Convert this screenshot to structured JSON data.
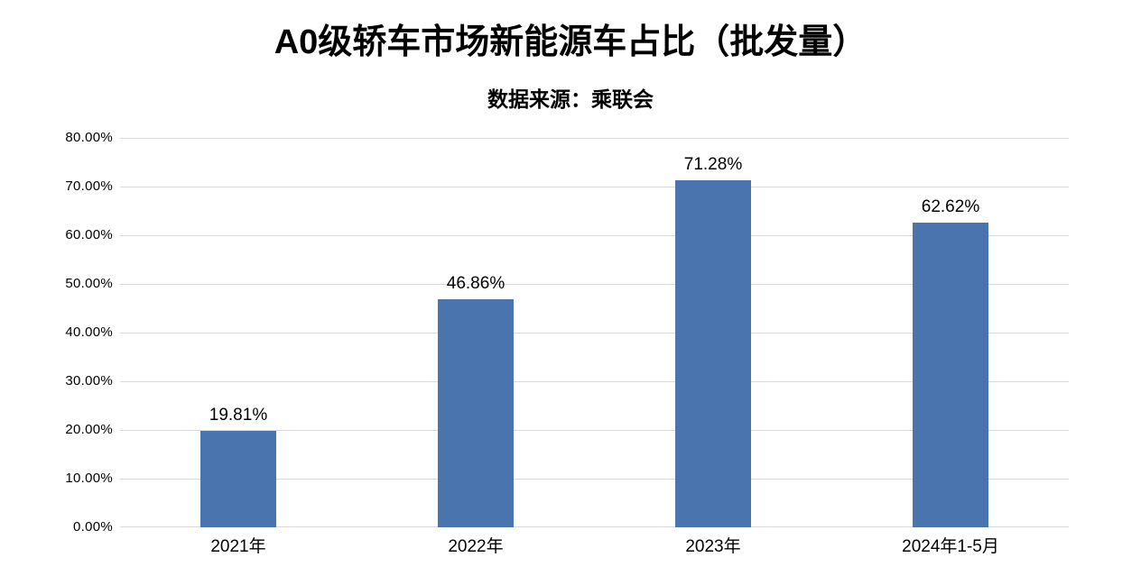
{
  "chart_data": {
    "type": "bar",
    "title": "A0级轿车市场新能源车占比（批发量）",
    "subtitle": "数据来源：乘联会",
    "categories": [
      "2021年",
      "2022年",
      "2023年",
      "2024年1-5月"
    ],
    "values": [
      19.81,
      46.86,
      71.28,
      62.62
    ],
    "data_labels": [
      "19.81%",
      "46.86%",
      "71.28%",
      "62.62%"
    ],
    "y_ticks": [
      "0.00%",
      "10.00%",
      "20.00%",
      "30.00%",
      "40.00%",
      "50.00%",
      "60.00%",
      "70.00%",
      "80.00%"
    ],
    "ylim": [
      0,
      80
    ],
    "y_tick_step": 10,
    "xlabel": "",
    "ylabel": "",
    "grid": true,
    "legend": "none",
    "colors": {
      "bar": "#4a74ae",
      "gridline": "#d9d9d9",
      "text": "#000000",
      "background": "#ffffff"
    }
  }
}
